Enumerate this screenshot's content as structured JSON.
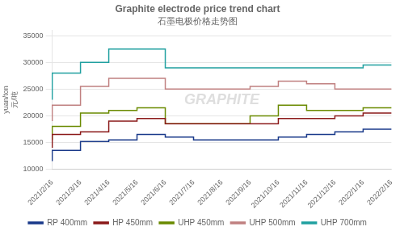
{
  "chart_data": {
    "type": "line",
    "line_style": "step",
    "title": "Graphite electrode price trend chart",
    "subtitle": "石墨电极价格走势图",
    "ylabel": [
      "yuan/ton",
      "元/吨"
    ],
    "annotations": [
      {
        "text": "GRAPHITE"
      }
    ],
    "categories": [
      "2021/2/16",
      "2021/3/16",
      "2021/4/16",
      "2021/5/16",
      "2021/6/16",
      "2021/7/16",
      "2021/8/16",
      "2021/9/16",
      "2021/10/16",
      "2021/11/16",
      "2021/12/16",
      "2022/1/16",
      "2022/2/16"
    ],
    "series": [
      {
        "name": "RP 400mm",
        "color": "#1a3a8a",
        "values": [
          11500,
          13500,
          15200,
          15500,
          16500,
          16000,
          15500,
          15500,
          15500,
          16000,
          16500,
          17000,
          17500
        ]
      },
      {
        "name": "HP 450mm",
        "color": "#8b1a1a",
        "values": [
          14000,
          16500,
          17000,
          19000,
          19500,
          18500,
          18500,
          18500,
          18500,
          19500,
          19500,
          20000,
          20500
        ]
      },
      {
        "name": "UHP 450mm",
        "color": "#6a8a00",
        "values": [
          15500,
          18000,
          20500,
          21000,
          21500,
          18500,
          18500,
          18500,
          20000,
          22000,
          21000,
          21000,
          21500
        ]
      },
      {
        "name": "UHP 500mm",
        "color": "#c08080",
        "values": [
          19000,
          22000,
          25500,
          27000,
          27000,
          25000,
          25000,
          25000,
          25500,
          26500,
          26000,
          25000,
          25000
        ]
      },
      {
        "name": "UHP 700mm",
        "color": "#20a0a0",
        "values": [
          23000,
          28000,
          30000,
          32500,
          32500,
          29000,
          29000,
          29000,
          29000,
          29000,
          29000,
          29000,
          29500
        ]
      }
    ],
    "ylim": [
      10000,
      36000
    ],
    "yticks": [
      10000,
      15000,
      20000,
      25000,
      30000,
      35000
    ],
    "grid": true,
    "legend": "bottom"
  }
}
